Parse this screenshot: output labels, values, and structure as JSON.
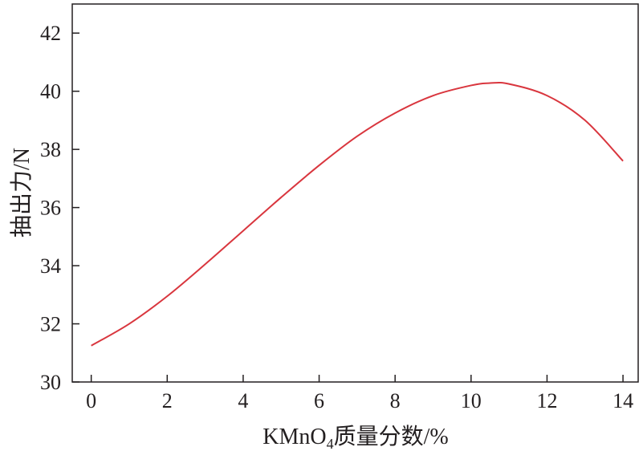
{
  "chart_data": {
    "type": "line",
    "title": "",
    "xlabel": "KMnO4质量分数/%",
    "xlabel_parts": {
      "main": "KMnO",
      "subscript": "4",
      "suffix": "质量分数/%"
    },
    "ylabel": "抽出力/N",
    "xlim": [
      -0.5,
      14.4
    ],
    "ylim": [
      30,
      43
    ],
    "xticks": [
      0,
      2,
      4,
      6,
      8,
      10,
      12,
      14
    ],
    "yticks": [
      30,
      32,
      34,
      36,
      38,
      40,
      42
    ],
    "grid": false,
    "legend": "none",
    "series": [
      {
        "color": "#d9363e",
        "x": [
          0,
          1,
          2,
          3,
          4,
          5,
          6,
          7,
          8,
          9,
          10,
          10.5,
          11,
          12,
          13,
          14
        ],
        "y": [
          31.25,
          32.0,
          32.95,
          34.05,
          35.2,
          36.35,
          37.45,
          38.45,
          39.25,
          39.85,
          40.2,
          40.28,
          40.25,
          39.85,
          39.0,
          37.6
        ]
      }
    ]
  }
}
